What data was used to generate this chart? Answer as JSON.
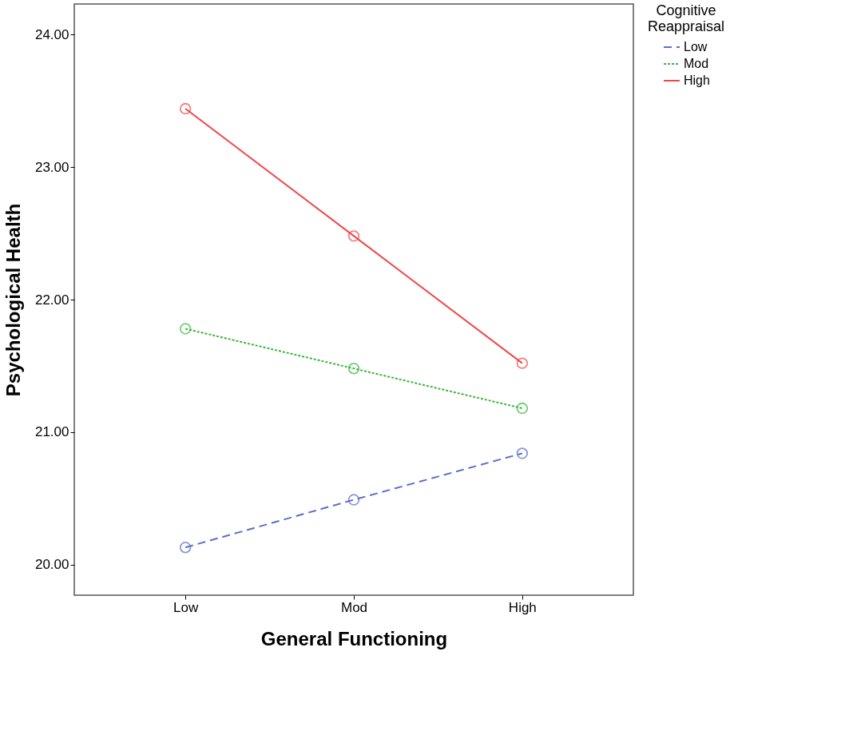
{
  "chart_data": {
    "type": "line",
    "xlabel": "General Functioning",
    "ylabel": "Psychological Health",
    "legend_title": "Cognitive Reappraisal",
    "categories": [
      "Low",
      "Mod",
      "High"
    ],
    "series": [
      {
        "name": "Low",
        "color": "#5b6fc6",
        "line_style": "dashed",
        "values": [
          20.13,
          20.49,
          20.84
        ]
      },
      {
        "name": "Mod",
        "color": "#3cb83c",
        "line_style": "dotted",
        "values": [
          21.78,
          21.48,
          21.18
        ]
      },
      {
        "name": "High",
        "color": "#f0484a",
        "line_style": "solid",
        "values": [
          23.44,
          22.48,
          21.52
        ]
      }
    ],
    "ylim": [
      19.77,
      24.23
    ],
    "yticks": [
      {
        "value": 20,
        "label": "20.00"
      },
      {
        "value": 21,
        "label": "21.00"
      },
      {
        "value": 22,
        "label": "22.00"
      },
      {
        "value": 23,
        "label": "23.00"
      },
      {
        "value": 24,
        "label": "24.00"
      }
    ],
    "grid": false,
    "legend": "top right",
    "marker": "circle"
  }
}
